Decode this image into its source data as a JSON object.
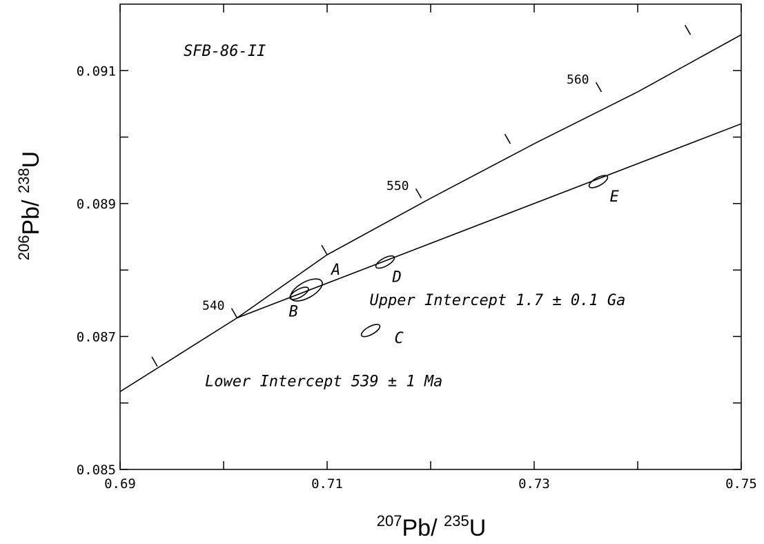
{
  "chart_data": {
    "type": "scatter",
    "title": "SFB-86-II",
    "xlabel": {
      "mass": "207",
      "element": "Pb",
      "separator": "/ ",
      "mass2": "235",
      "element2": "U"
    },
    "ylabel": {
      "mass": "206",
      "element": "Pb",
      "separator": "/ ",
      "mass2": "238",
      "element2": "U"
    },
    "xlim": [
      0.69,
      0.75
    ],
    "ylim": [
      0.085,
      0.092
    ],
    "x_ticks": [
      0.69,
      0.7,
      0.71,
      0.72,
      0.73,
      0.74,
      0.75
    ],
    "x_tick_labels": [
      "0.69",
      "",
      "0.71",
      "",
      "0.73",
      "",
      "0.75"
    ],
    "y_ticks": [
      0.085,
      0.086,
      0.087,
      0.088,
      0.089,
      0.09,
      0.091
    ],
    "y_tick_labels": [
      "0.085",
      "",
      "0.087",
      "",
      "0.089",
      "",
      "0.091"
    ],
    "concordia": {
      "points": [
        [
          0.665,
          0.0846
        ],
        [
          0.69,
          0.08617
        ],
        [
          0.7013,
          0.08728
        ],
        [
          0.71,
          0.08823
        ],
        [
          0.72,
          0.08908
        ],
        [
          0.73,
          0.0899
        ],
        [
          0.74,
          0.09068
        ],
        [
          0.75,
          0.09154
        ],
        [
          0.76,
          0.0924
        ]
      ],
      "age_ticks": [
        {
          "x": 0.6936,
          "y": 0.08655,
          "label": ""
        },
        {
          "x": 0.7013,
          "y": 0.08728,
          "label": "540"
        },
        {
          "x": 0.71,
          "y": 0.08823,
          "label": ""
        },
        {
          "x": 0.7191,
          "y": 0.08908,
          "label": "550"
        },
        {
          "x": 0.7277,
          "y": 0.0899,
          "label": ""
        },
        {
          "x": 0.7365,
          "y": 0.09068,
          "label": "560"
        },
        {
          "x": 0.7451,
          "y": 0.09154,
          "label": ""
        }
      ]
    },
    "discordia": {
      "from": [
        0.7013,
        0.08728
      ],
      "to": [
        0.75,
        0.0902
      ]
    },
    "data_points": [
      {
        "label": "A",
        "x": 0.708,
        "y": 0.0877,
        "rx": 0.0017,
        "ry": 0.00012,
        "label_x": 0.7104,
        "label_y": 0.08793
      },
      {
        "label": "B",
        "x": 0.7073,
        "y": 0.08765,
        "rx": 0.001,
        "ry": 6e-05,
        "label_x": 0.7063,
        "label_y": 0.0873
      },
      {
        "label": "C",
        "x": 0.7142,
        "y": 0.08709,
        "rx": 0.001,
        "ry": 6e-05,
        "label_x": 0.7165,
        "label_y": 0.0869
      },
      {
        "label": "D",
        "x": 0.7156,
        "y": 0.08812,
        "rx": 0.001,
        "ry": 6e-05,
        "label_x": 0.7163,
        "label_y": 0.08782
      },
      {
        "label": "E",
        "x": 0.7362,
        "y": 0.08933,
        "rx": 0.001,
        "ry": 6e-05,
        "label_x": 0.7373,
        "label_y": 0.08903
      }
    ],
    "annotations": [
      {
        "text": "Upper Intercept 1.7 ± 0.1 Ga",
        "x": 0.7141,
        "y": 0.08747
      },
      {
        "text": "Lower Intercept 539 ± 1 Ma",
        "x": 0.6982,
        "y": 0.08625
      }
    ],
    "grid": false,
    "legend": "none"
  }
}
